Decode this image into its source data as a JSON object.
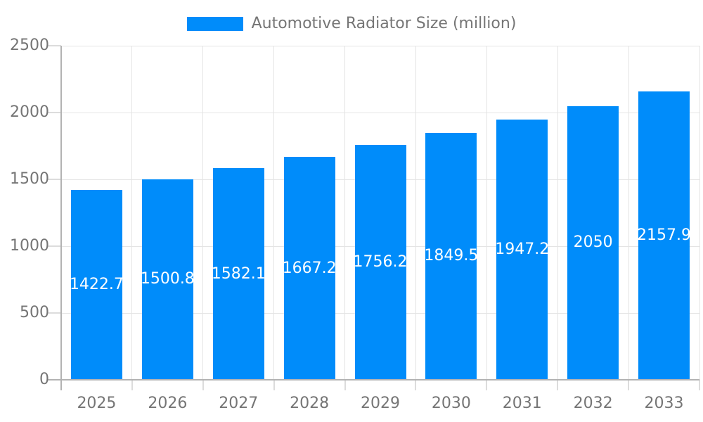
{
  "chart_data": {
    "type": "bar",
    "title": "Automotive Radiator Size (million)",
    "legend": [
      "Automotive Radiator Size (million)"
    ],
    "legend_position": "top-center",
    "categories": [
      "2025",
      "2026",
      "2027",
      "2028",
      "2029",
      "2030",
      "2031",
      "2032",
      "2033"
    ],
    "values": [
      1422.7,
      1500.8,
      1582.1,
      1667.2,
      1756.2,
      1849.5,
      1947.2,
      2050,
      2157.9
    ],
    "value_labels": "inside-middle-white",
    "xlabel": "",
    "ylabel": "",
    "ylim": [
      0,
      2500
    ],
    "yticks": [
      0,
      500,
      1000,
      1500,
      2000,
      2500
    ],
    "grid": true,
    "colors": {
      "bar": "#008CFA",
      "grid": "#e4e4e4",
      "tick": "#dcdcdc",
      "axis": "#b3b3b3",
      "text": "#757575",
      "value_text": "#ffffff",
      "background": "#ffffff"
    }
  }
}
